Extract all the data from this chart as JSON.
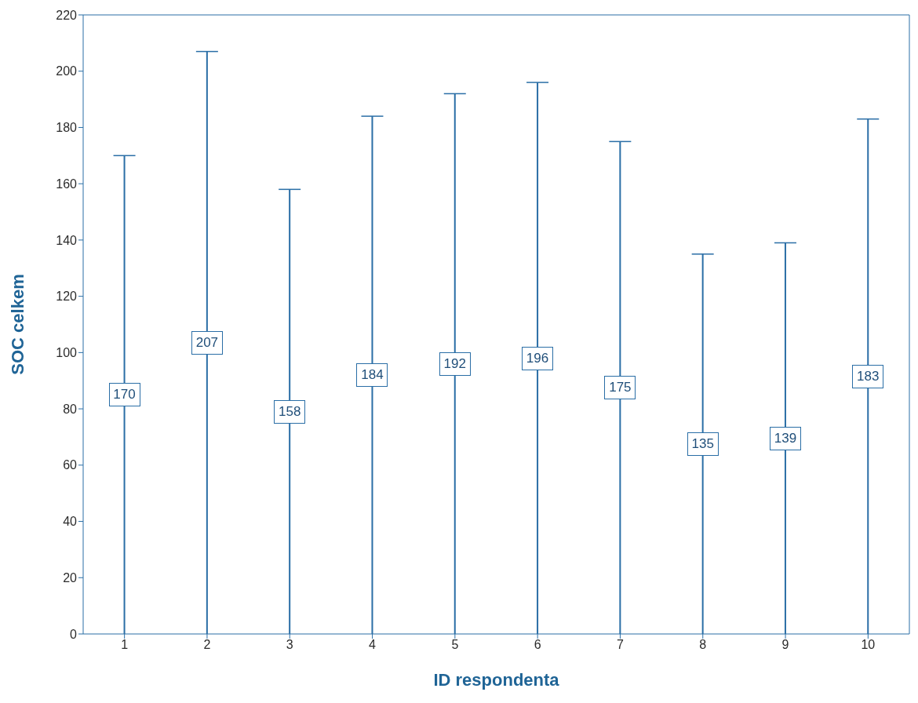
{
  "chart_data": {
    "type": "bar",
    "xlabel": "ID respondenta",
    "ylabel": "SOC celkem",
    "categories": [
      "1",
      "2",
      "3",
      "4",
      "5",
      "6",
      "7",
      "8",
      "9",
      "10"
    ],
    "values": [
      170,
      207,
      158,
      184,
      192,
      196,
      175,
      135,
      139,
      183
    ],
    "color": "#2a6ea6",
    "ylim": [
      0,
      220
    ],
    "yticks": [
      0,
      20,
      40,
      60,
      80,
      100,
      120,
      140,
      160,
      180,
      200,
      220
    ],
    "grid": false,
    "data_labels": true
  }
}
